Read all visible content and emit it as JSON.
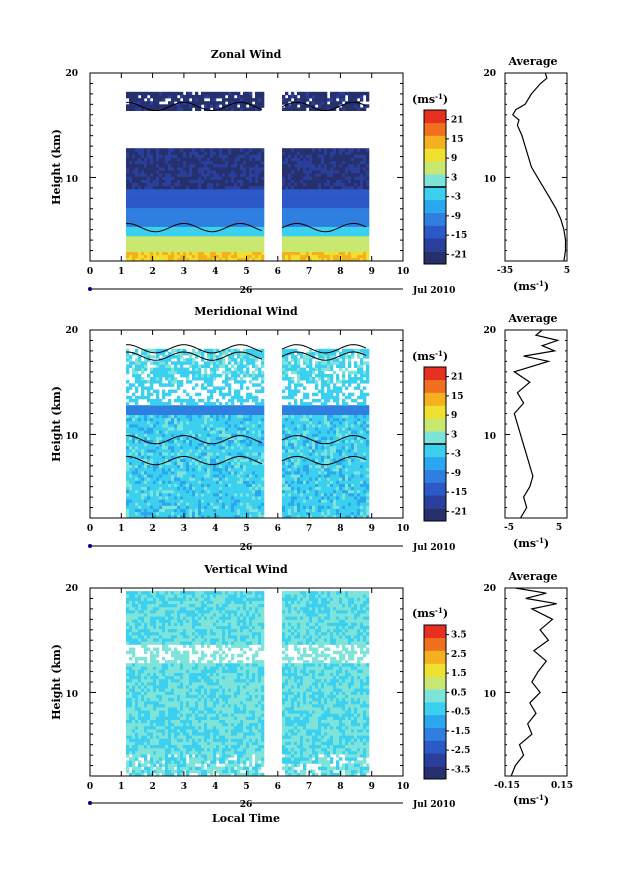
{
  "figure": {
    "x_axis": {
      "ticks": [
        "0",
        "1",
        "2",
        "3",
        "4",
        "5",
        "6",
        "7",
        "8",
        "9",
        "10"
      ],
      "day_label": "26",
      "month_label": "Jul 2010",
      "xlabel": "Local Time"
    }
  },
  "chart_data": [
    {
      "type": "heatmap",
      "title": "Zonal Wind",
      "ylabel": "Height (km)",
      "yticks": [
        "20",
        "10"
      ],
      "ylim": [
        2,
        20
      ],
      "xlim": [
        0,
        10
      ],
      "colorbar": {
        "unit": "(ms-1)",
        "ticks": [
          "21",
          "15",
          "9",
          "3",
          "-3",
          "-9",
          "-15",
          "-21"
        ],
        "range": [
          -24,
          24
        ]
      },
      "contour_level": 0,
      "average_panel": {
        "title": "Average",
        "xticks": [
          "-35",
          "5"
        ],
        "xlim": [
          -35,
          5
        ],
        "unit": "(ms-1)",
        "profile": [
          [
            3,
            2
          ],
          [
            4,
            3
          ],
          [
            4,
            4
          ],
          [
            3,
            5
          ],
          [
            1,
            6
          ],
          [
            -2,
            7
          ],
          [
            -6,
            8
          ],
          [
            -10,
            9
          ],
          [
            -14,
            10
          ],
          [
            -18,
            11
          ],
          [
            -20,
            12
          ],
          [
            -22,
            13
          ],
          [
            -24,
            14
          ],
          [
            -27,
            15
          ],
          [
            -26,
            15.5
          ],
          [
            -30,
            16
          ],
          [
            -28,
            16.5
          ],
          [
            -22,
            17
          ],
          [
            -18,
            18
          ],
          [
            -12,
            19
          ],
          [
            -8,
            19.5
          ],
          [
            -9,
            20
          ]
        ]
      }
    },
    {
      "type": "heatmap",
      "title": "Meridional Wind",
      "ylabel": "Height (km)",
      "yticks": [
        "20",
        "10"
      ],
      "ylim": [
        2,
        20
      ],
      "xlim": [
        0,
        10
      ],
      "colorbar": {
        "unit": "(ms-1)",
        "ticks": [
          "21",
          "15",
          "9",
          "3",
          "-3",
          "-9",
          "-15",
          "-21"
        ],
        "range": [
          -24,
          24
        ]
      },
      "contour_level": 0,
      "average_panel": {
        "title": "Average",
        "xticks": [
          "-5",
          "5"
        ],
        "xlim": [
          -5,
          5
        ],
        "unit": "(ms-1)",
        "profile": [
          [
            -2.5,
            2
          ],
          [
            -1.5,
            3
          ],
          [
            -2,
            4
          ],
          [
            -1,
            5
          ],
          [
            -0.5,
            6
          ],
          [
            -1,
            7
          ],
          [
            -1.5,
            8
          ],
          [
            -2,
            9
          ],
          [
            -2.5,
            10
          ],
          [
            -3,
            11
          ],
          [
            -3.5,
            12
          ],
          [
            -2,
            13
          ],
          [
            -3,
            14
          ],
          [
            -1,
            15
          ],
          [
            -3.5,
            16
          ],
          [
            2,
            17
          ],
          [
            -2,
            17.5
          ],
          [
            3,
            18
          ],
          [
            1,
            18.5
          ],
          [
            3.5,
            19
          ],
          [
            0,
            19.5
          ],
          [
            1,
            20
          ]
        ]
      }
    },
    {
      "type": "heatmap",
      "title": "Vertical Wind",
      "ylabel": "Height (km)",
      "yticks": [
        "20",
        "10"
      ],
      "ylim": [
        2,
        20
      ],
      "xlim": [
        0,
        10
      ],
      "colorbar": {
        "unit": "(ms-1)",
        "ticks": [
          "3.5",
          "2.5",
          "1.5",
          "0.5",
          "-0.5",
          "-1.5",
          "-2.5",
          "-3.5"
        ],
        "range": [
          -4,
          4
        ]
      },
      "contour_level": null,
      "average_panel": {
        "title": "Average",
        "xticks": [
          "-0.15",
          "0.15"
        ],
        "xlim": [
          -0.15,
          0.15
        ],
        "unit": "(ms-1)",
        "profile": [
          [
            -0.12,
            2
          ],
          [
            -0.1,
            3
          ],
          [
            -0.06,
            4
          ],
          [
            -0.08,
            5
          ],
          [
            -0.02,
            6
          ],
          [
            -0.04,
            7
          ],
          [
            0.0,
            8
          ],
          [
            -0.03,
            9
          ],
          [
            0.02,
            10
          ],
          [
            -0.02,
            11
          ],
          [
            0.01,
            12
          ],
          [
            0.05,
            13
          ],
          [
            -0.01,
            14
          ],
          [
            0.06,
            15
          ],
          [
            0.02,
            16
          ],
          [
            0.08,
            17
          ],
          [
            -0.02,
            18
          ],
          [
            0.1,
            18.5
          ],
          [
            -0.05,
            19
          ],
          [
            0.05,
            19.5
          ],
          [
            -0.1,
            20
          ]
        ]
      }
    }
  ]
}
